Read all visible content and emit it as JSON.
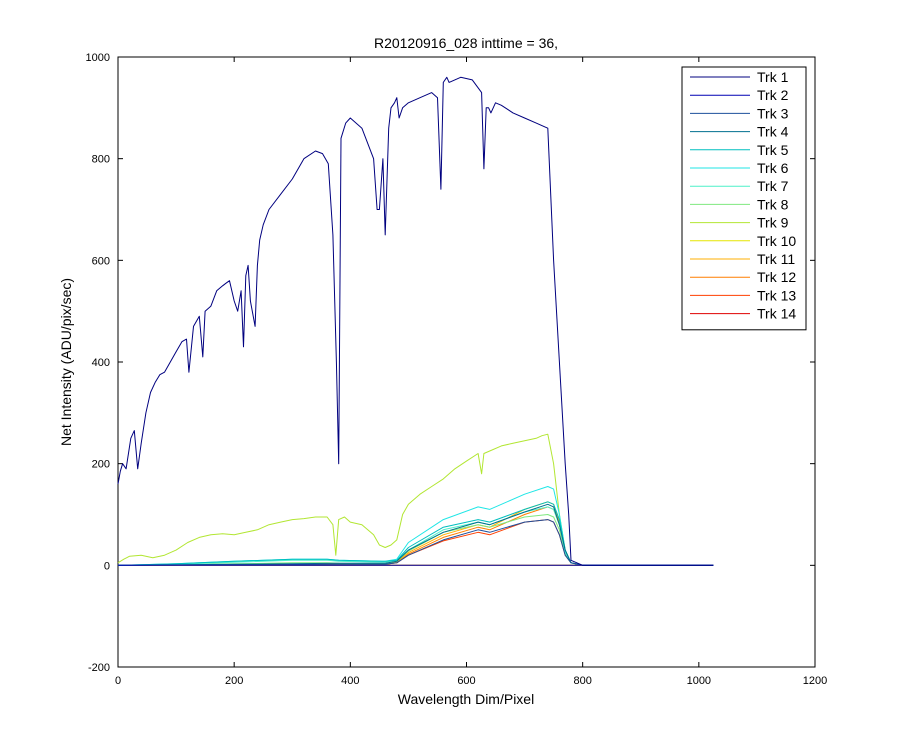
{
  "chart_data": {
    "type": "line",
    "title": "R20120916_028 inttime = 36,",
    "xlabel": "Wavelength Dim/Pixel",
    "ylabel": "Net Intensity (ADU/pix/sec)",
    "xlim": [
      0,
      1200
    ],
    "ylim": [
      -200,
      1000
    ],
    "xticks": [
      0,
      200,
      400,
      600,
      800,
      1000,
      1200
    ],
    "yticks": [
      -200,
      0,
      200,
      400,
      600,
      800,
      1000
    ],
    "grid": false,
    "legend_position": "top-right",
    "series": [
      {
        "name": "Trk 1",
        "color": "#00007f",
        "x": [
          0,
          4,
          8,
          14,
          22,
          28,
          34,
          40,
          48,
          56,
          64,
          72,
          80,
          90,
          100,
          110,
          118,
          122,
          130,
          140,
          146,
          150,
          160,
          170,
          180,
          186,
          192,
          200,
          206,
          212,
          216,
          220,
          224,
          228,
          236,
          240,
          244,
          250,
          260,
          280,
          300,
          320,
          340,
          352,
          362,
          370,
          376,
          380,
          384,
          392,
          400,
          420,
          440,
          446,
          450,
          456,
          460,
          466,
          470,
          476,
          480,
          484,
          490,
          500,
          520,
          540,
          550,
          556,
          560,
          566,
          570,
          590,
          610,
          626,
          630,
          634,
          638,
          642,
          650,
          660,
          680,
          700,
          720,
          740,
          750,
          760,
          770,
          776,
          780,
          800,
          1025
        ],
        "y": [
          160,
          185,
          200,
          190,
          250,
          265,
          190,
          240,
          300,
          340,
          360,
          375,
          380,
          400,
          420,
          440,
          445,
          380,
          470,
          490,
          410,
          500,
          510,
          540,
          550,
          555,
          560,
          520,
          500,
          540,
          430,
          570,
          590,
          520,
          470,
          590,
          640,
          670,
          700,
          730,
          760,
          800,
          815,
          810,
          790,
          650,
          400,
          200,
          840,
          870,
          880,
          860,
          800,
          700,
          700,
          800,
          650,
          860,
          900,
          910,
          920,
          880,
          900,
          910,
          920,
          930,
          920,
          740,
          950,
          960,
          950,
          960,
          955,
          930,
          780,
          900,
          900,
          890,
          910,
          905,
          890,
          880,
          870,
          860,
          600,
          400,
          200,
          100,
          10,
          0,
          0
        ]
      },
      {
        "name": "Trk 2",
        "color": "#0000b4",
        "x": [
          0,
          1025
        ],
        "y": [
          0,
          0
        ]
      },
      {
        "name": "Trk 3",
        "color": "#1c4f9c",
        "x": [
          0,
          200,
          380,
          460,
          480,
          500,
          560,
          620,
          640,
          700,
          740,
          750,
          760,
          770,
          780,
          800,
          1025
        ],
        "y": [
          0,
          1,
          2,
          2,
          5,
          20,
          50,
          70,
          65,
          85,
          90,
          85,
          60,
          20,
          5,
          0,
          0
        ]
      },
      {
        "name": "Trk 4",
        "color": "#006f8f",
        "x": [
          0,
          200,
          380,
          460,
          480,
          500,
          560,
          620,
          640,
          700,
          740,
          750,
          760,
          770,
          780,
          800,
          1025
        ],
        "y": [
          0,
          2,
          4,
          4,
          8,
          30,
          65,
          85,
          80,
          105,
          120,
          115,
          80,
          30,
          5,
          0,
          0
        ]
      },
      {
        "name": "Trk 5",
        "color": "#00bfbf",
        "x": [
          0,
          100,
          200,
          300,
          360,
          380,
          460,
          480,
          500,
          560,
          620,
          640,
          700,
          740,
          750,
          760,
          770,
          780,
          800,
          1025
        ],
        "y": [
          0,
          3,
          8,
          12,
          12,
          10,
          8,
          10,
          35,
          75,
          90,
          85,
          110,
          125,
          120,
          90,
          30,
          5,
          0,
          0
        ]
      },
      {
        "name": "Trk 6",
        "color": "#1fe6e6",
        "x": [
          0,
          100,
          200,
          300,
          360,
          380,
          460,
          480,
          500,
          560,
          620,
          640,
          700,
          740,
          750,
          760,
          770,
          780,
          800,
          1025
        ],
        "y": [
          0,
          3,
          8,
          12,
          12,
          10,
          8,
          12,
          45,
          90,
          115,
          110,
          140,
          155,
          150,
          100,
          30,
          5,
          0,
          0
        ]
      },
      {
        "name": "Trk 7",
        "color": "#4ff0c8",
        "x": [
          0,
          100,
          200,
          300,
          360,
          380,
          460,
          480,
          500,
          560,
          620,
          640,
          700,
          740,
          750,
          760,
          770,
          780,
          800,
          1025
        ],
        "y": [
          0,
          2,
          6,
          10,
          10,
          8,
          6,
          10,
          30,
          70,
          85,
          80,
          105,
          115,
          110,
          80,
          25,
          5,
          0,
          0
        ]
      },
      {
        "name": "Trk 8",
        "color": "#7fe87f",
        "x": [
          0,
          100,
          200,
          300,
          360,
          380,
          460,
          480,
          500,
          560,
          620,
          640,
          700,
          740,
          750,
          760,
          770,
          780,
          800,
          1025
        ],
        "y": [
          0,
          1,
          3,
          5,
          5,
          4,
          3,
          8,
          28,
          65,
          80,
          75,
          95,
          100,
          95,
          70,
          20,
          5,
          0,
          0
        ]
      },
      {
        "name": "Trk 9",
        "color": "#b2e632",
        "x": [
          0,
          10,
          20,
          40,
          60,
          80,
          100,
          120,
          140,
          160,
          180,
          200,
          220,
          240,
          260,
          280,
          300,
          320,
          340,
          360,
          370,
          375,
          380,
          390,
          400,
          420,
          440,
          450,
          460,
          470,
          480,
          490,
          500,
          520,
          540,
          560,
          580,
          600,
          620,
          626,
          630,
          640,
          660,
          680,
          700,
          720,
          730,
          740,
          750,
          760,
          770,
          780,
          800,
          1025
        ],
        "y": [
          5,
          12,
          18,
          20,
          15,
          20,
          30,
          45,
          55,
          60,
          62,
          60,
          65,
          70,
          80,
          85,
          90,
          92,
          95,
          95,
          80,
          20,
          90,
          95,
          85,
          80,
          60,
          40,
          35,
          40,
          50,
          100,
          120,
          140,
          155,
          170,
          190,
          205,
          220,
          180,
          220,
          225,
          235,
          240,
          245,
          250,
          255,
          258,
          200,
          100,
          30,
          5,
          0,
          0
        ]
      },
      {
        "name": "Trk 10",
        "color": "#e6e600",
        "x": [
          0,
          1025
        ],
        "y": [
          0,
          0
        ]
      },
      {
        "name": "Trk 11",
        "color": "#ffaf00",
        "x": [
          0,
          200,
          380,
          460,
          480,
          500,
          560,
          620,
          640,
          700,
          740,
          750,
          760,
          770,
          780,
          800,
          1025
        ],
        "y": [
          0,
          1,
          2,
          2,
          6,
          25,
          60,
          80,
          75,
          110,
          125,
          120,
          85,
          25,
          5,
          0,
          0
        ]
      },
      {
        "name": "Trk 12",
        "color": "#ff7f00",
        "x": [
          0,
          200,
          380,
          460,
          480,
          500,
          560,
          620,
          640,
          700,
          740,
          750,
          760,
          770,
          780,
          800,
          1025
        ],
        "y": [
          0,
          1,
          2,
          2,
          5,
          22,
          55,
          75,
          70,
          100,
          115,
          110,
          80,
          25,
          5,
          0,
          0
        ]
      },
      {
        "name": "Trk 13",
        "color": "#ff3f00",
        "x": [
          0,
          200,
          380,
          460,
          480,
          500,
          560,
          620,
          640,
          700,
          740,
          750,
          760,
          770,
          780,
          800,
          1025
        ],
        "y": [
          0,
          1,
          2,
          2,
          5,
          20,
          48,
          65,
          60,
          85,
          90,
          85,
          60,
          20,
          5,
          0,
          0
        ]
      },
      {
        "name": "Trk 14",
        "color": "#df0000",
        "x": [
          0,
          1025
        ],
        "y": [
          0,
          0
        ]
      }
    ]
  }
}
